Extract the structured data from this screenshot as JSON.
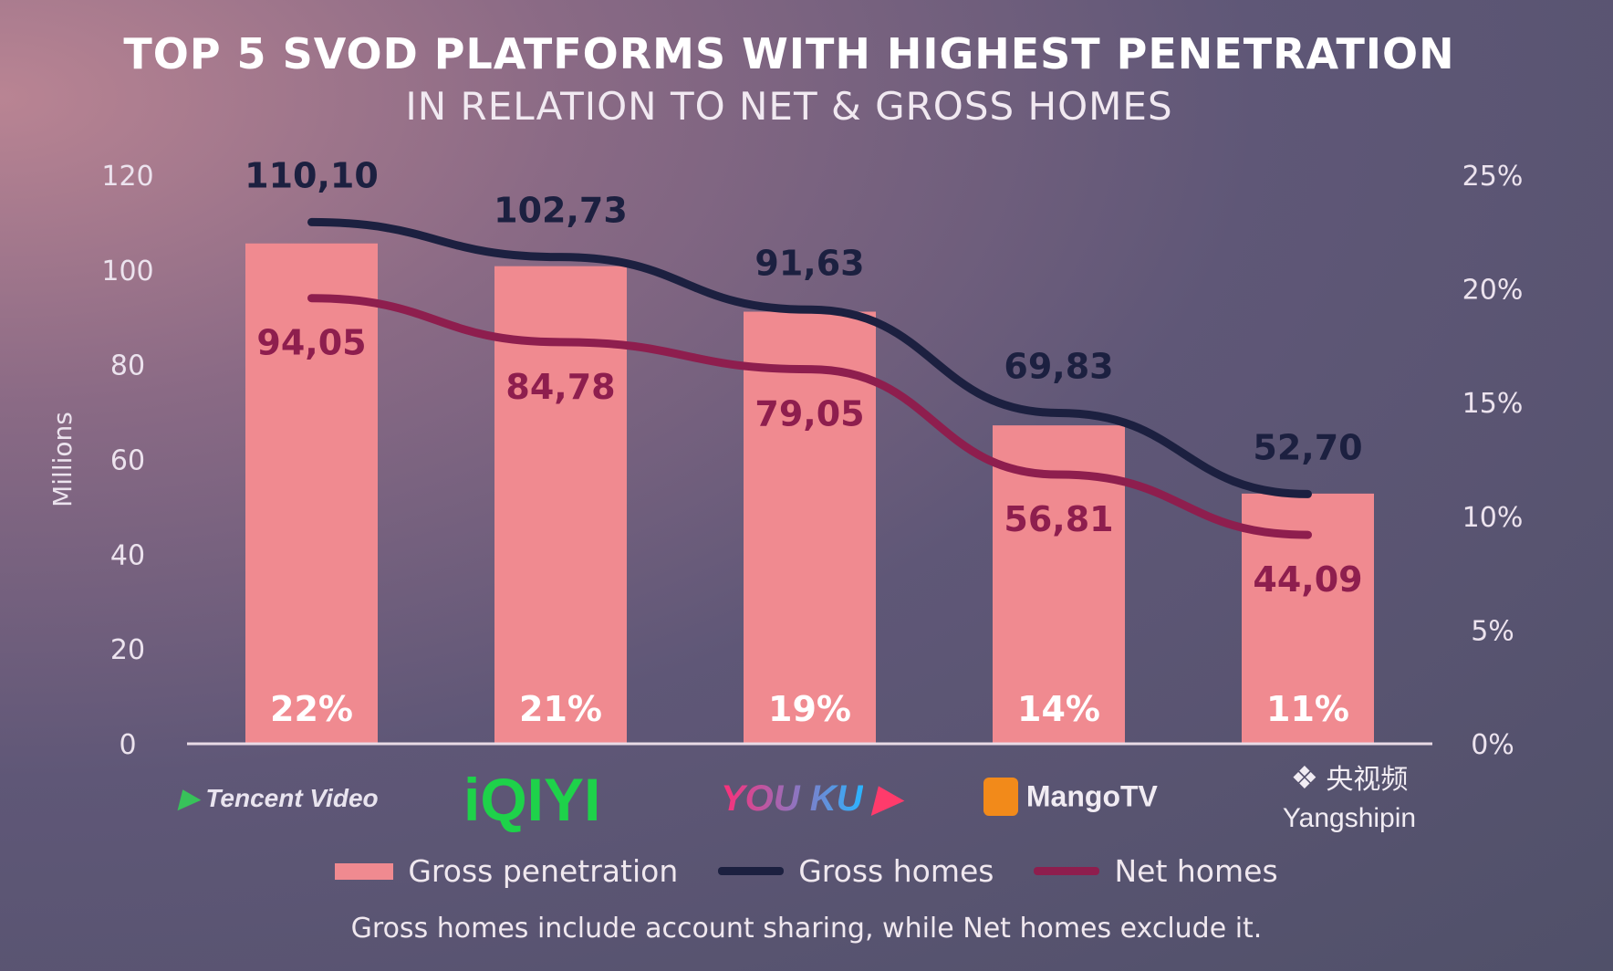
{
  "chart_data": {
    "type": "bar",
    "title": "TOP 5 SVOD PLATFORMS WITH HIGHEST PENETRATION",
    "subtitle": "IN RELATION TO NET & GROSS HOMES",
    "categories": [
      "Tencent Video",
      "iQIYI",
      "YOUKU",
      "MangoTV",
      "Yangshipin"
    ],
    "category_logo_text": [
      "Tencent Video",
      "iQIYI",
      "YOU KU",
      "MangoTV",
      "央视频 Yangshipin"
    ],
    "ylabel": "Millions",
    "ylim": [
      0,
      120
    ],
    "yticks": [
      "0",
      "20",
      "40",
      "60",
      "80",
      "100",
      "120"
    ],
    "y2lim": [
      0,
      25
    ],
    "y2ticks": [
      "0%",
      "5%",
      "10%",
      "15%",
      "20%",
      "25%"
    ],
    "series": [
      {
        "name": "Gross penetration",
        "type": "bar",
        "axis": "right",
        "values": [
          22,
          21,
          19,
          14,
          11
        ],
        "labels": [
          "22%",
          "21%",
          "19%",
          "14%",
          "11%"
        ],
        "color": "#f08a90"
      },
      {
        "name": "Gross homes",
        "type": "line",
        "axis": "left",
        "values": [
          110.1,
          102.73,
          91.63,
          69.83,
          52.7
        ],
        "labels": [
          "110,10",
          "102,73",
          "91,63",
          "69,83",
          "52,70"
        ],
        "color": "#1c2040"
      },
      {
        "name": "Net homes",
        "type": "line",
        "axis": "left",
        "values": [
          94.05,
          84.78,
          79.05,
          56.81,
          44.09
        ],
        "labels": [
          "94,05",
          "84,78",
          "79,05",
          "56,81",
          "44,09"
        ],
        "color": "#8e1e4e"
      }
    ],
    "legend": [
      "Gross penetration",
      "Gross homes",
      "Net homes"
    ],
    "legend_position": "bottom",
    "note": "Gross homes include account sharing, while Net homes exclude it."
  }
}
